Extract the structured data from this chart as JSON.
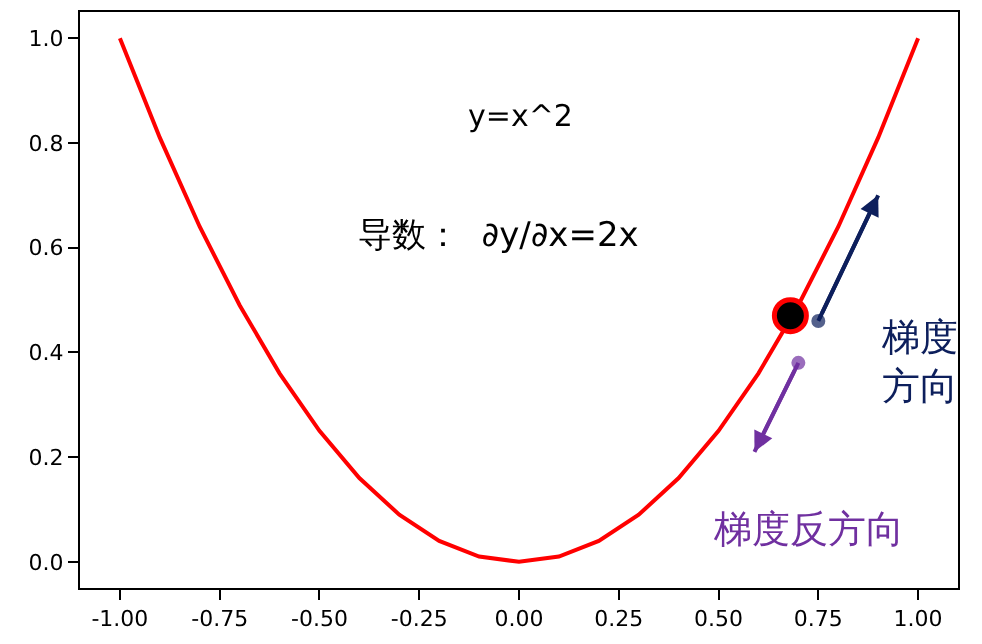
{
  "chart_data": {
    "type": "line",
    "x": [
      -1.0,
      -0.9,
      -0.8,
      -0.7,
      -0.6,
      -0.5,
      -0.4,
      -0.3,
      -0.2,
      -0.1,
      0.0,
      0.1,
      0.2,
      0.3,
      0.4,
      0.5,
      0.6,
      0.7,
      0.8,
      0.9,
      1.0
    ],
    "series": [
      {
        "color": "#ff0000",
        "values": [
          1.0,
          0.81,
          0.64,
          0.49,
          0.36,
          0.25,
          0.16,
          0.09,
          0.04,
          0.01,
          0.0,
          0.01,
          0.04,
          0.09,
          0.16,
          0.25,
          0.36,
          0.49,
          0.64,
          0.81,
          1.0
        ]
      },
      {
        "type": "scatter",
        "color": "#000000",
        "x": [
          0.68
        ],
        "values": [
          0.47
        ]
      },
      {
        "type": "line",
        "color": "#0d1f5c",
        "marker": "circle",
        "x": [
          0.75,
          0.9
        ],
        "values": [
          0.46,
          0.7
        ]
      },
      {
        "type": "line",
        "color": "#7030a0",
        "marker": "circle",
        "x": [
          0.7,
          0.59
        ],
        "values": [
          0.38,
          0.21
        ]
      }
    ],
    "xlim": [
      -1.1,
      1.1
    ],
    "ylim": [
      -0.05,
      1.05
    ],
    "xticks": [
      {
        "value": -1,
        "label": "-1.00"
      },
      {
        "value": -0.75,
        "label": "-0.75"
      },
      {
        "value": -0.5,
        "label": "-0.50"
      },
      {
        "value": -0.25,
        "label": "-0.25"
      },
      {
        "value": 0,
        "label": "0.00"
      },
      {
        "value": 0.25,
        "label": "0.25"
      },
      {
        "value": 0.5,
        "label": "0.50"
      },
      {
        "value": 0.75,
        "label": "0.75"
      },
      {
        "value": 1,
        "label": "1.00"
      }
    ],
    "yticks": [
      {
        "value": 0,
        "label": "0.0"
      },
      {
        "value": 0.2,
        "label": "0.2"
      },
      {
        "value": 0.4,
        "label": "0.4"
      },
      {
        "value": 0.6,
        "label": "0.6"
      },
      {
        "value": 0.8,
        "label": "0.8"
      },
      {
        "value": 1,
        "label": "1.0"
      }
    ],
    "annotations": [
      "y=x^2",
      "导数：  ∂y/∂x=2x",
      "梯度方向",
      "梯度反方向"
    ]
  }
}
